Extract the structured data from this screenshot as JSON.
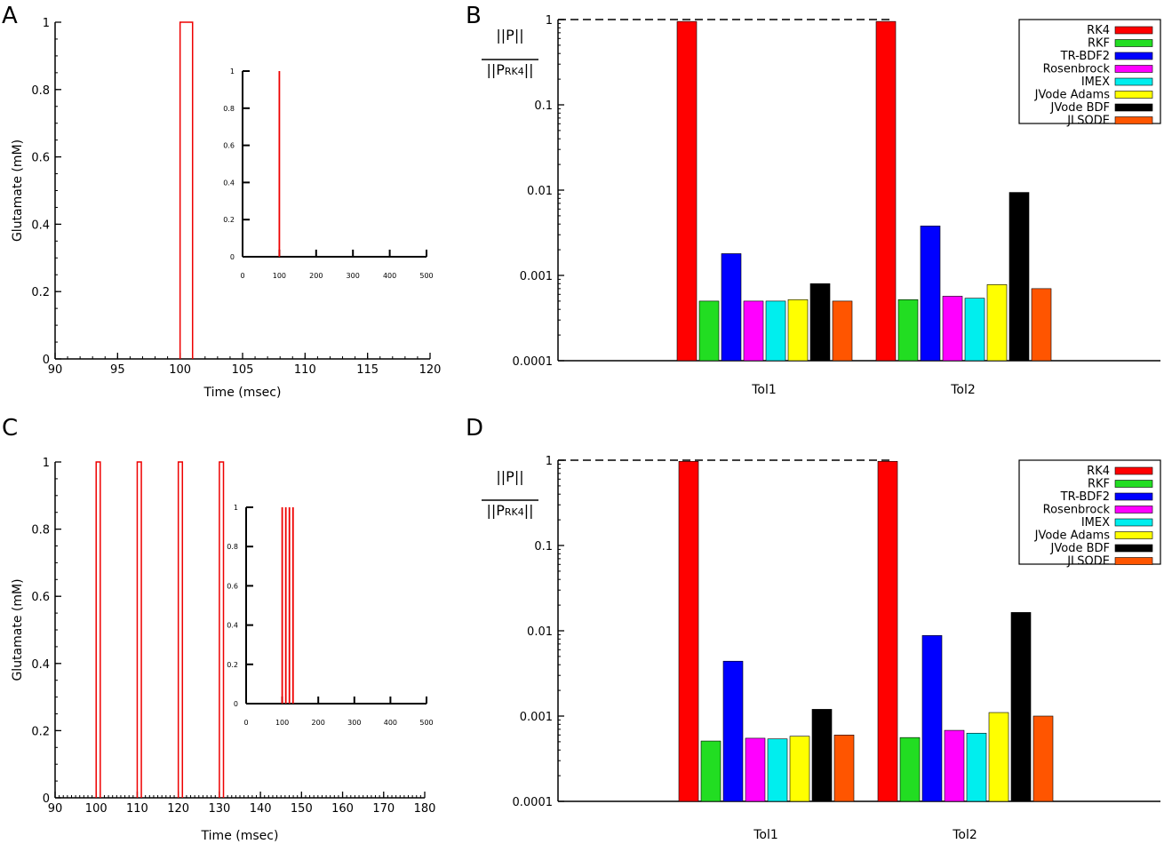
{
  "panels": [
    {
      "label": "A"
    },
    {
      "label": "B"
    },
    {
      "label": "C"
    },
    {
      "label": "D"
    }
  ],
  "ylabel_ratio": {
    "numerator": "||P||",
    "denominator_prefix": "||P",
    "denominator_sub": "RK4",
    "denominator_suffix": "||"
  },
  "colors": {
    "RK4": "#ff0000",
    "RKF": "#22dd22",
    "TR-BDF2": "#0000ff",
    "Rosenbrock": "#ff00ff",
    "IMEX": "#00eeee",
    "JVode Adams": "#ffff00",
    "JVode BDF": "#000000",
    "JLSODE": "#ff5500",
    "pulse": "#ee0000"
  },
  "chart_data": [
    {
      "panel": "A",
      "type": "line",
      "xlabel": "Time (msec)",
      "ylabel": "Glutamate (mM)",
      "xlim": [
        90,
        120
      ],
      "ylim": [
        0,
        1
      ],
      "x_ticks": [
        90,
        95,
        100,
        105,
        110,
        115,
        120
      ],
      "y_ticks": [
        0,
        0.2,
        0.4,
        0.6,
        0.8,
        1
      ],
      "y_tick_labels": [
        "0",
        "0.2",
        "0.4",
        "0.6",
        "0.8",
        "1"
      ],
      "pulses": [
        {
          "start": 100,
          "end": 101,
          "value": 1
        }
      ],
      "inset": {
        "xlim": [
          0,
          500
        ],
        "ylim": [
          0,
          1
        ],
        "x_ticks": [
          0,
          100,
          200,
          300,
          400,
          500
        ],
        "y_ticks": [
          0,
          0.2,
          0.4,
          0.6,
          0.8,
          1
        ],
        "y_tick_labels": [
          "0",
          "0.2",
          "0.4",
          "0.6",
          "0.8",
          "1"
        ],
        "pulses": [
          100
        ]
      }
    },
    {
      "panel": "B",
      "type": "bar",
      "scale": "log",
      "ylim": [
        0.0001,
        1
      ],
      "y_ticks": [
        0.0001,
        0.001,
        0.01,
        0.1,
        1
      ],
      "y_tick_labels": [
        "0.0001",
        "0.001",
        "0.01",
        "0.1",
        "1"
      ],
      "categories": [
        "Tol1",
        "Tol2"
      ],
      "reference_line": 1,
      "legend_position": "top-right",
      "series": [
        {
          "name": "RK4",
          "values": [
            0.95,
            0.95
          ]
        },
        {
          "name": "RKF",
          "values": [
            0.0005,
            0.00052
          ]
        },
        {
          "name": "TR-BDF2",
          "values": [
            0.0018,
            0.0038
          ]
        },
        {
          "name": "Rosenbrock",
          "values": [
            0.0005,
            0.00057
          ]
        },
        {
          "name": "IMEX",
          "values": [
            0.0005,
            0.00054
          ]
        },
        {
          "name": "JVode Adams",
          "values": [
            0.00052,
            0.00078
          ]
        },
        {
          "name": "JVode BDF",
          "values": [
            0.0008,
            0.0094
          ]
        },
        {
          "name": "JLSODE",
          "values": [
            0.0005,
            0.0007
          ]
        }
      ]
    },
    {
      "panel": "C",
      "type": "line",
      "xlabel": "Time (msec)",
      "ylabel": "Glutamate (mM)",
      "xlim": [
        90,
        180
      ],
      "ylim": [
        0,
        1
      ],
      "x_ticks": [
        90,
        100,
        110,
        120,
        130,
        140,
        150,
        160,
        170,
        180
      ],
      "y_ticks": [
        0,
        0.2,
        0.4,
        0.6,
        0.8,
        1
      ],
      "y_tick_labels": [
        "0",
        "0.2",
        "0.4",
        "0.6",
        "0.8",
        "1"
      ],
      "pulses": [
        {
          "start": 100,
          "end": 101,
          "value": 1
        },
        {
          "start": 110,
          "end": 111,
          "value": 1
        },
        {
          "start": 120,
          "end": 121,
          "value": 1
        },
        {
          "start": 130,
          "end": 131,
          "value": 1
        }
      ],
      "inset": {
        "xlim": [
          0,
          500
        ],
        "ylim": [
          0,
          1
        ],
        "x_ticks": [
          0,
          100,
          200,
          300,
          400,
          500
        ],
        "y_ticks": [
          0,
          0.2,
          0.4,
          0.6,
          0.8,
          1
        ],
        "y_tick_labels": [
          "0",
          "0.2",
          "0.4",
          "0.6",
          "0.8",
          "1"
        ],
        "pulses": [
          100,
          110,
          120,
          130
        ]
      }
    },
    {
      "panel": "D",
      "type": "bar",
      "scale": "log",
      "ylim": [
        0.0001,
        1
      ],
      "y_ticks": [
        0.0001,
        0.001,
        0.01,
        0.1,
        1
      ],
      "y_tick_labels": [
        "0.0001",
        "0.001",
        "0.01",
        "0.1",
        "1"
      ],
      "categories": [
        "Tol1",
        "Tol2"
      ],
      "reference_line": 1,
      "legend_position": "top-right",
      "series": [
        {
          "name": "RK4",
          "values": [
            0.97,
            0.97
          ]
        },
        {
          "name": "RKF",
          "values": [
            0.00051,
            0.00056
          ]
        },
        {
          "name": "TR-BDF2",
          "values": [
            0.0044,
            0.0088
          ]
        },
        {
          "name": "Rosenbrock",
          "values": [
            0.00055,
            0.00068
          ]
        },
        {
          "name": "IMEX",
          "values": [
            0.00054,
            0.00063
          ]
        },
        {
          "name": "JVode Adams",
          "values": [
            0.00058,
            0.0011
          ]
        },
        {
          "name": "JVode BDF",
          "values": [
            0.0012,
            0.0164
          ]
        },
        {
          "name": "JLSODE",
          "values": [
            0.0006,
            0.001
          ]
        }
      ]
    }
  ]
}
